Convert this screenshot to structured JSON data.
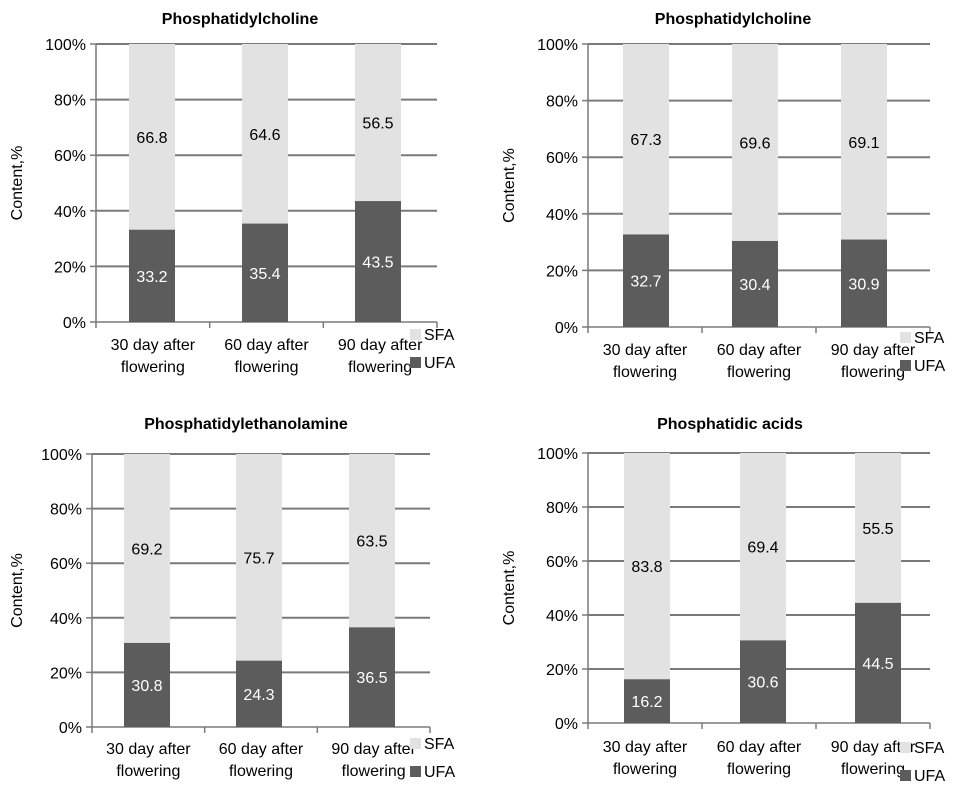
{
  "colors": {
    "sfa": "#e2e2e2",
    "ufa": "#5c5c5c",
    "grid": "#7a7a7a",
    "ufa_label": "#ffffff",
    "sfa_label": "#000000"
  },
  "chart_data": [
    {
      "type": "bar",
      "stacked": true,
      "title": "Phosphatidylcholine",
      "ylabel": "Content,%",
      "ylim": [
        0,
        100
      ],
      "yticks": [
        "0%",
        "20%",
        "40%",
        "60%",
        "80%",
        "100%"
      ],
      "categories": [
        [
          "30 day after",
          "flowering"
        ],
        [
          "60 day after",
          "flowering"
        ],
        [
          "90 day after",
          "flowering"
        ]
      ],
      "series": [
        {
          "name": "UFA",
          "values": [
            33.2,
            35.4,
            43.5
          ]
        },
        {
          "name": "SFA",
          "values": [
            66.8,
            64.6,
            56.5
          ]
        }
      ],
      "legend": [
        "SFA",
        "UFA"
      ]
    },
    {
      "type": "bar",
      "stacked": true,
      "title": "Phosphatidylcholine",
      "ylabel": "Content,%",
      "ylim": [
        0,
        100
      ],
      "yticks": [
        "0%",
        "20%",
        "40%",
        "60%",
        "80%",
        "100%"
      ],
      "categories": [
        [
          "30 day after",
          "flowering"
        ],
        [
          "60 day after",
          "flowering"
        ],
        [
          "90 day after",
          "flowering"
        ]
      ],
      "series": [
        {
          "name": "UFA",
          "values": [
            32.7,
            30.4,
            30.9
          ]
        },
        {
          "name": "SFA",
          "values": [
            67.3,
            69.6,
            69.1
          ]
        }
      ],
      "legend": [
        "SFA",
        "UFA"
      ]
    },
    {
      "type": "bar",
      "stacked": true,
      "title": "Phosphatidylethanolamine",
      "ylabel": "Content,%",
      "ylim": [
        0,
        100
      ],
      "yticks": [
        "0%",
        "20%",
        "40%",
        "60%",
        "80%",
        "100%"
      ],
      "categories": [
        [
          "30 day after",
          "flowering"
        ],
        [
          "60 day after",
          "flowering"
        ],
        [
          "90 day after",
          "flowering"
        ]
      ],
      "series": [
        {
          "name": "UFA",
          "values": [
            30.8,
            24.3,
            36.5
          ]
        },
        {
          "name": "SFA",
          "values": [
            69.2,
            75.7,
            63.5
          ]
        }
      ],
      "legend": [
        "SFA",
        "UFA"
      ]
    },
    {
      "type": "bar",
      "stacked": true,
      "title": "Phosphatidic acids",
      "ylabel": "Content,%",
      "ylim": [
        0,
        100
      ],
      "yticks": [
        "0%",
        "20%",
        "40%",
        "60%",
        "80%",
        "100%"
      ],
      "categories": [
        [
          "30 day after",
          "flowering"
        ],
        [
          "60 day after",
          "flowering"
        ],
        [
          "90 day after",
          "flowering"
        ]
      ],
      "series": [
        {
          "name": "UFA",
          "values": [
            16.2,
            30.6,
            44.5
          ]
        },
        {
          "name": "SFA",
          "values": [
            83.8,
            69.4,
            55.5
          ]
        }
      ],
      "legend": [
        "SFA",
        "UFA"
      ]
    }
  ]
}
